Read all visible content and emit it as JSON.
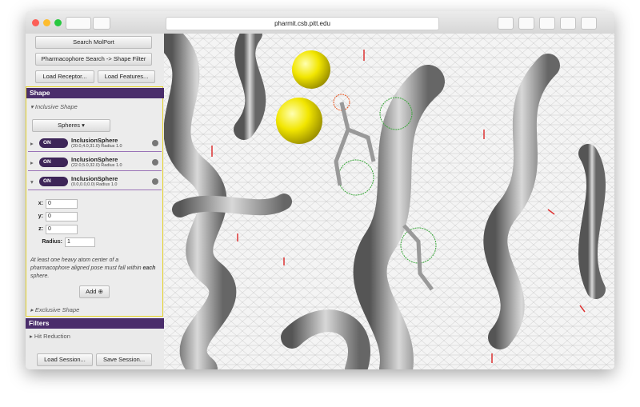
{
  "browser": {
    "url": "pharmit.csb.pitt.edu"
  },
  "sidebar": {
    "search_button": "Search MolPort",
    "filter_button": "Pharmacophore Search -> Shape Filter",
    "load_receptor": "Load Receptor...",
    "load_features": "Load Features...",
    "shape": {
      "title": "Shape",
      "inclusive": "Inclusive Shape",
      "shape_select": "Spheres",
      "spheres": [
        {
          "toggle": "ON",
          "name": "InclusionSphere",
          "detail": "(20.0,4.0,31.0) Radius 1.0"
        },
        {
          "toggle": "ON",
          "name": "InclusionSphere",
          "detail": "(22.0,5.0,32.0) Radius 1.0"
        },
        {
          "toggle": "ON",
          "name": "InclusionSphere",
          "detail": "(0.0,0.0,0.0) Radius 1.0"
        }
      ],
      "fields": [
        {
          "label": "x:",
          "value": 0
        },
        {
          "label": "y:",
          "value": 0
        },
        {
          "label": "z:",
          "value": 0
        },
        {
          "label": "Radius:",
          "value": 1
        }
      ],
      "note_pre": "At least one heavy atom center of a pharmacophore aligned pose must fall within",
      "note_bold": "each",
      "note_post": "sphere.",
      "add": "Add",
      "exclusive": "Exclusive Shape"
    },
    "filters": {
      "title": "Filters",
      "hit_reduction": "Hit Reduction"
    },
    "load_session": "Load Session...",
    "save_session": "Save Session..."
  }
}
